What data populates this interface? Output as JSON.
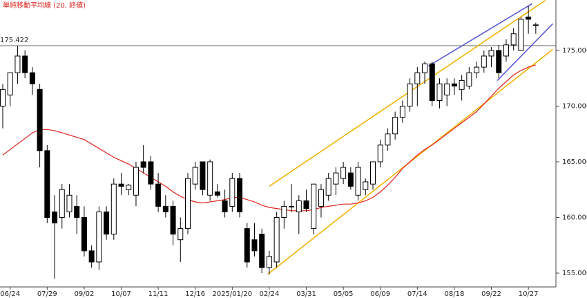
{
  "chart_data": {
    "type": "candlestick",
    "title": "単純移動平均線 (20, 終値)",
    "title_color": "#e0201c",
    "categories": [
      null,
      "06/24",
      null,
      null,
      null,
      null,
      "07/29",
      null,
      null,
      null,
      null,
      "09/02",
      null,
      null,
      null,
      null,
      "10/07",
      null,
      null,
      null,
      null,
      "11/11",
      null,
      null,
      null,
      null,
      "12/16",
      null,
      null,
      null,
      null,
      "2025/01/20",
      null,
      null,
      null,
      null,
      "02/24",
      null,
      null,
      null,
      null,
      "03/31",
      null,
      null,
      null,
      null,
      "05/05",
      null,
      null,
      null,
      null,
      "06/09",
      null,
      null,
      null,
      null,
      "07/14",
      null,
      null,
      null,
      null,
      "08/18",
      null,
      null,
      null,
      null,
      "09/22",
      null,
      null,
      null,
      null,
      "10/27",
      null
    ],
    "open": [
      170,
      171,
      173,
      174.5,
      173,
      171.5,
      166,
      160.5,
      160,
      160.5,
      161,
      160,
      157,
      156,
      160.5,
      158.5,
      163,
      162.5,
      162,
      165,
      165,
      163,
      161,
      161,
      158,
      159,
      163,
      165,
      162,
      162.3,
      161.5,
      161,
      163.5,
      159,
      158,
      158.5,
      155.5,
      156,
      160,
      161,
      160.5,
      161.5,
      159,
      161,
      162,
      163,
      163.5,
      164,
      162,
      162.5,
      163,
      165,
      166.5,
      167.5,
      169,
      170,
      172,
      173,
      173.8,
      170.5,
      171,
      172,
      171.5,
      171.8,
      173,
      173.5,
      174.5,
      175,
      174.5,
      175.5,
      175,
      178,
      177.3
    ],
    "high": [
      172,
      173,
      175.4,
      175,
      173.5,
      172,
      166.5,
      162,
      163,
      163,
      162,
      161,
      157.5,
      161,
      161,
      163.5,
      164,
      163,
      165,
      166.5,
      165.5,
      164,
      162,
      161.5,
      160,
      164,
      165,
      165,
      165.2,
      163,
      162.5,
      164,
      164,
      159.5,
      159.5,
      159,
      157,
      160.5,
      161.5,
      163,
      162,
      162.5,
      163,
      163,
      164,
      164.5,
      165,
      164.5,
      165,
      163.5,
      165,
      167,
      168,
      169.5,
      170.5,
      172.5,
      173.5,
      174,
      174,
      172.5,
      172.5,
      172.5,
      172.8,
      173.5,
      174,
      175,
      175.3,
      175.5,
      176,
      177,
      178,
      179,
      177.5
    ],
    "low": [
      168,
      170,
      172,
      172.5,
      171,
      164.5,
      159.5,
      154.5,
      159,
      160,
      158.5,
      156.5,
      155.5,
      155.3,
      158,
      158,
      162,
      162,
      161,
      164,
      162.5,
      160.5,
      160,
      157.5,
      156,
      158.5,
      162.5,
      162,
      161.5,
      161.8,
      160,
      160.5,
      160,
      155.5,
      156.5,
      155,
      154.9,
      155.5,
      159,
      160.5,
      158.5,
      160.5,
      158.5,
      160,
      161.5,
      162,
      163,
      162.5,
      161.5,
      162,
      162.5,
      164.5,
      166,
      167,
      168.5,
      169.5,
      170,
      172,
      170,
      169.8,
      170,
      171,
      170.5,
      171.5,
      172.5,
      173,
      173.5,
      172.5,
      174,
      175,
      175,
      176.5,
      176.5
    ],
    "close": [
      171.5,
      173,
      174.5,
      173,
      172,
      166,
      160,
      159.5,
      162.5,
      162,
      160,
      157,
      156,
      160.5,
      158.5,
      163,
      162.8,
      162.9,
      164.5,
      164.5,
      163,
      161,
      160.5,
      158.5,
      159,
      163.5,
      164.5,
      162.5,
      165,
      162,
      160.5,
      163.5,
      160.5,
      156,
      157,
      155.5,
      156.5,
      160,
      161,
      161,
      161.5,
      160.8,
      163,
      162.5,
      163.5,
      164,
      164.5,
      162.8,
      164.5,
      163.2,
      165,
      166.5,
      167.5,
      169,
      170,
      172,
      173,
      173.8,
      170.5,
      172,
      172,
      171.8,
      172.3,
      173,
      173.5,
      174.5,
      175,
      173,
      175.5,
      176.5,
      177.8,
      177.8,
      177.3
    ],
    "ma": {
      "name": "単純移動平均線 (20, 終値)",
      "color": "#e0201c",
      "values": [
        165.6,
        166.1,
        166.6,
        167.1,
        167.6,
        167.9,
        167.9,
        167.8,
        167.6,
        167.4,
        167.2,
        167.0,
        166.6,
        166.2,
        165.8,
        165.4,
        165.1,
        164.8,
        164.4,
        164.0,
        163.6,
        163.2,
        162.8,
        162.3,
        161.9,
        161.6,
        161.4,
        161.3,
        161.4,
        161.5,
        161.6,
        161.8,
        161.8,
        161.6,
        161.4,
        161.1,
        160.9,
        160.8,
        160.7,
        160.6,
        160.6,
        160.6,
        160.7,
        160.9,
        161.0,
        161.1,
        161.2,
        161.2,
        161.3,
        161.5,
        161.8,
        162.3,
        162.9,
        163.6,
        164.4,
        165.0,
        165.6,
        166.1,
        166.5,
        167.0,
        167.5,
        168.0,
        168.5,
        169.0,
        169.5,
        170.2,
        170.9,
        171.6,
        172.2,
        172.8,
        173.2,
        173.5,
        173.7
      ]
    },
    "reference_line": 175.422,
    "trendlines": [
      {
        "color": "#f0b400",
        "x": [
          36,
          73.3
        ],
        "values": [
          162.8,
          179.5
        ]
      },
      {
        "color": "#f0b400",
        "x": [
          35.8,
          74.3
        ],
        "values": [
          154.9,
          175.1
        ]
      },
      {
        "color": "#5a5ad8",
        "x": [
          57.5,
          71.5
        ],
        "values": [
          173.6,
          179.2
        ]
      },
      {
        "color": "#5a5ad8",
        "x": [
          66.8,
          74.3
        ],
        "values": [
          172.3,
          177.4
        ]
      }
    ],
    "ylim": [
      153.76,
      179.53
    ],
    "yticks": [
      {
        "value": 155,
        "label": "155.000"
      },
      {
        "value": 160,
        "label": "160.000"
      },
      {
        "value": 165,
        "label": "165.000"
      },
      {
        "value": 170,
        "label": "170.000"
      },
      {
        "value": 175,
        "label": "175.000"
      }
    ]
  }
}
